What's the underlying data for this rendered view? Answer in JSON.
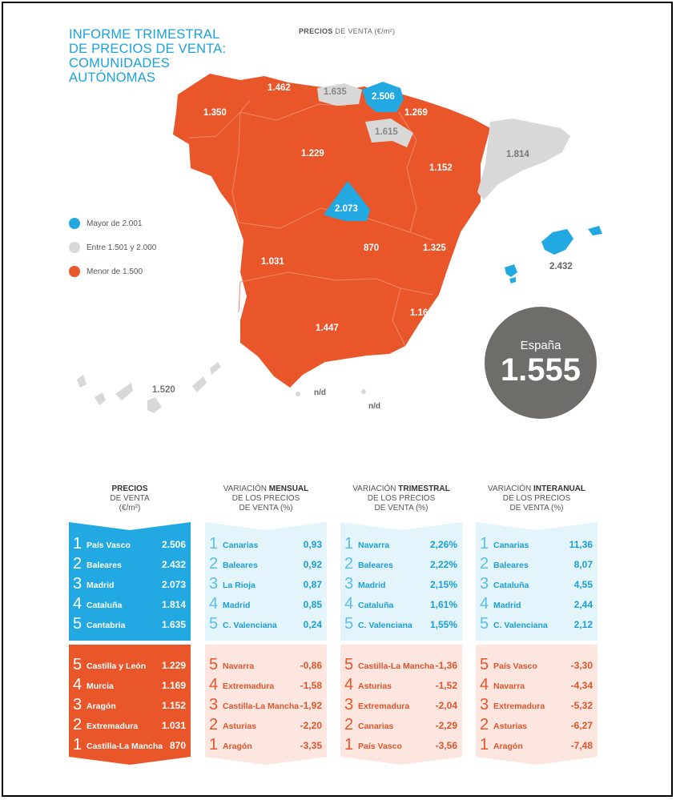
{
  "title": {
    "line1": "INFORME TRIMESTRAL",
    "line2": "DE PRECIOS DE VENTA:",
    "line3": "COMUNIDADES",
    "line4": "AUTÓNOMAS"
  },
  "map_caption": {
    "bold": "PRECIOS",
    "rest": " DE VENTA (€/m²)"
  },
  "legend": [
    {
      "label": "Mayor de 2.001",
      "color": "#22a9e1"
    },
    {
      "label": "Entre 1.501 y 2.000",
      "color": "#d8d8d8"
    },
    {
      "label": "Menor de 1.500",
      "color": "#e8562a"
    }
  ],
  "colors": {
    "blue": "#22a9e1",
    "orange": "#e8562a",
    "grey": "#d8d8d8",
    "dark_grey": "#6f6d69",
    "light_blue": "#e3f4fb",
    "light_orange": "#fce6df"
  },
  "map_values": {
    "galicia": "1.350",
    "asturias": "1.462",
    "cantabria": "1.635",
    "pais_vasco": "2.506",
    "navarra": "1.269",
    "rioja": "1.615",
    "castilla_leon": "1.229",
    "aragon": "1.152",
    "cataluna": "1.814",
    "madrid": "2.073",
    "castilla_mancha": "870",
    "valencia": "1.325",
    "extremadura": "1.031",
    "murcia": "1.169",
    "andalucia": "1.447",
    "baleares": "2.432",
    "canarias": "1.520",
    "ceuta": "n/d",
    "melilla": "n/d"
  },
  "espana": {
    "label": "España",
    "value": "1.555"
  },
  "columns": [
    {
      "head_bold": "PRECIOS",
      "head_line2": "DE VENTA",
      "head_line3": "(€/m²)",
      "top": [
        {
          "rank": "1",
          "name": "País Vasco",
          "value": "2.506"
        },
        {
          "rank": "2",
          "name": "Baleares",
          "value": "2.432"
        },
        {
          "rank": "3",
          "name": "Madrid",
          "value": "2.073"
        },
        {
          "rank": "4",
          "name": "Cataluña",
          "value": "1.814"
        },
        {
          "rank": "5",
          "name": "Cantabria",
          "value": "1.635"
        }
      ],
      "bottom": [
        {
          "rank": "5",
          "name": "Castilla y León",
          "value": "1.229"
        },
        {
          "rank": "4",
          "name": "Murcia",
          "value": "1.169"
        },
        {
          "rank": "3",
          "name": "Aragón",
          "value": "1.152"
        },
        {
          "rank": "2",
          "name": "Extremadura",
          "value": "1.031"
        },
        {
          "rank": "1",
          "name": "Castilla-La Mancha",
          "value": "870"
        }
      ]
    },
    {
      "head_pre": "VARIACIÓN ",
      "head_bold": "MENSUAL",
      "head_line2": "DE LOS PRECIOS",
      "head_line3": "DE VENTA (%)",
      "top": [
        {
          "rank": "1",
          "name": "Canarias",
          "value": "0,93"
        },
        {
          "rank": "2",
          "name": "Baleares",
          "value": "0,92"
        },
        {
          "rank": "3",
          "name": "La Rioja",
          "value": "0,87"
        },
        {
          "rank": "4",
          "name": "Madrid",
          "value": "0,85"
        },
        {
          "rank": "5",
          "name": "C. Valenciana",
          "value": "0,24"
        }
      ],
      "bottom": [
        {
          "rank": "5",
          "name": "Navarra",
          "value": "-0,86"
        },
        {
          "rank": "4",
          "name": "Extremadura",
          "value": "-1,58"
        },
        {
          "rank": "3",
          "name": "Castilla-La Mancha",
          "value": "-1,92"
        },
        {
          "rank": "2",
          "name": "Asturias",
          "value": "-2,20"
        },
        {
          "rank": "1",
          "name": "Aragón",
          "value": "-3,35"
        }
      ]
    },
    {
      "head_pre": "VARIACIÓN ",
      "head_bold": "TRIMESTRAL",
      "head_line2": "DE LOS PRECIOS",
      "head_line3": "DE VENTA (%)",
      "top": [
        {
          "rank": "1",
          "name": "Navarra",
          "value": "2,26%"
        },
        {
          "rank": "2",
          "name": "Baleares",
          "value": "2,22%"
        },
        {
          "rank": "3",
          "name": "Madrid",
          "value": "2,15%"
        },
        {
          "rank": "4",
          "name": "Cataluña",
          "value": "1,61%"
        },
        {
          "rank": "5",
          "name": "C. Valenciana",
          "value": "1,55%"
        }
      ],
      "bottom": [
        {
          "rank": "5",
          "name": "Castilla-La Mancha",
          "value": "-1,36"
        },
        {
          "rank": "4",
          "name": "Asturias",
          "value": "-1,52"
        },
        {
          "rank": "3",
          "name": "Extremadura",
          "value": "-2,04"
        },
        {
          "rank": "2",
          "name": "Canarias",
          "value": "-2,29"
        },
        {
          "rank": "1",
          "name": "País Vasco",
          "value": "-3,56"
        }
      ]
    },
    {
      "head_pre": "VARIACIÓN ",
      "head_bold": "INTERANUAL",
      "head_line2": "DE LOS PRECIOS",
      "head_line3": "DE VENTA (%)",
      "top": [
        {
          "rank": "1",
          "name": "Canarias",
          "value": "11,36"
        },
        {
          "rank": "2",
          "name": "Baleares",
          "value": "8,07"
        },
        {
          "rank": "3",
          "name": "Cataluña",
          "value": "4,55"
        },
        {
          "rank": "4",
          "name": "Madrid",
          "value": "2,44"
        },
        {
          "rank": "5",
          "name": "C. Valenciana",
          "value": "2,12"
        }
      ],
      "bottom": [
        {
          "rank": "5",
          "name": "País Vasco",
          "value": "-3,30"
        },
        {
          "rank": "4",
          "name": "Navarra",
          "value": "-4,34"
        },
        {
          "rank": "3",
          "name": "Extremadura",
          "value": "-5,32"
        },
        {
          "rank": "2",
          "name": "Asturias",
          "value": "-6,27"
        },
        {
          "rank": "1",
          "name": "Aragón",
          "value": "-7,48"
        }
      ]
    }
  ]
}
